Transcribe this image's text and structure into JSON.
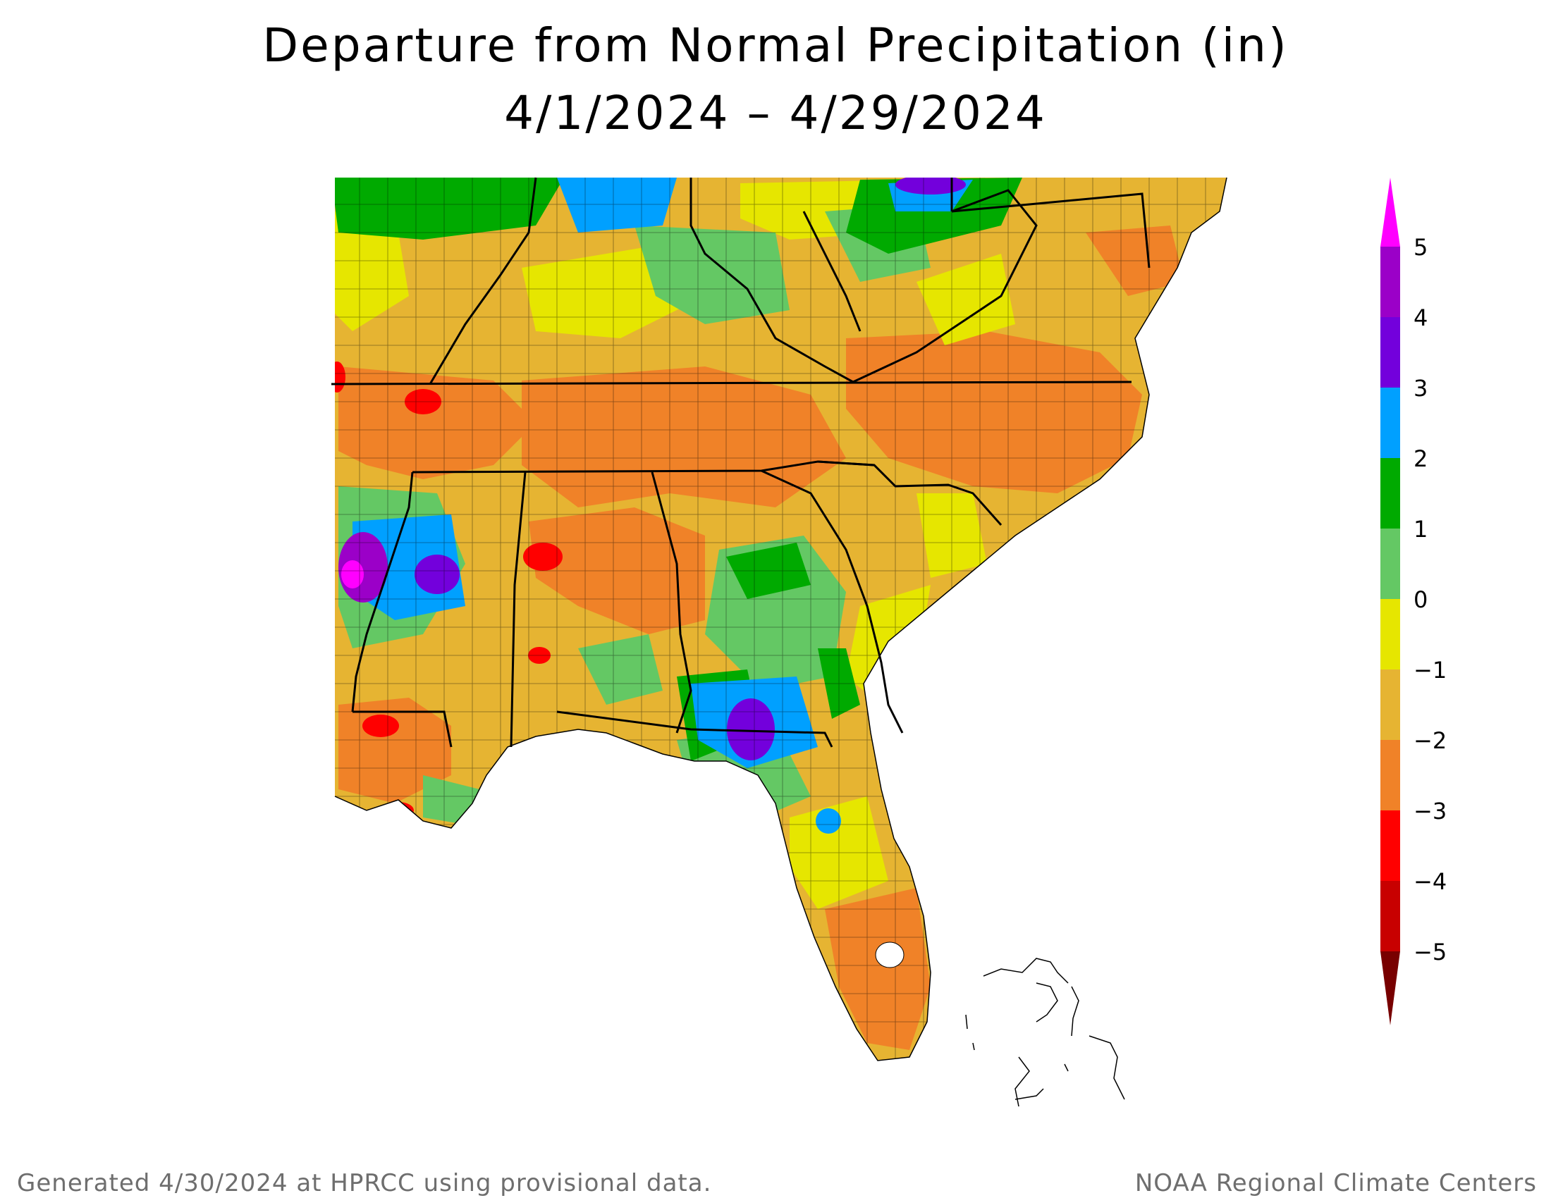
{
  "title": {
    "line1": "Departure from Normal Precipitation (in)",
    "line2": "4/1/2024 – 4/29/2024"
  },
  "legend": {
    "unit": "in",
    "labels": [
      "5",
      "4",
      "3",
      "2",
      "1",
      "0",
      "−1",
      "−2",
      "−3",
      "−4",
      "−5"
    ],
    "colors": {
      "above_5": "#ff00ff",
      "4_to_5": "#9b00c8",
      "3_to_4": "#7300dc",
      "2_to_3": "#00a0ff",
      "1_to_2": "#00aa00",
      "0_to_1": "#64c864",
      "m1_to_0": "#e6e600",
      "m2_to_m1": "#e6b432",
      "m3_to_m2": "#f08228",
      "m4_to_m3": "#ff0000",
      "m5_to_m4": "#c80000",
      "below_m5": "#780000"
    }
  },
  "footer": {
    "left": "Generated 4/30/2024 at HPRCC using provisional data.",
    "right": "NOAA Regional Climate Centers"
  }
}
